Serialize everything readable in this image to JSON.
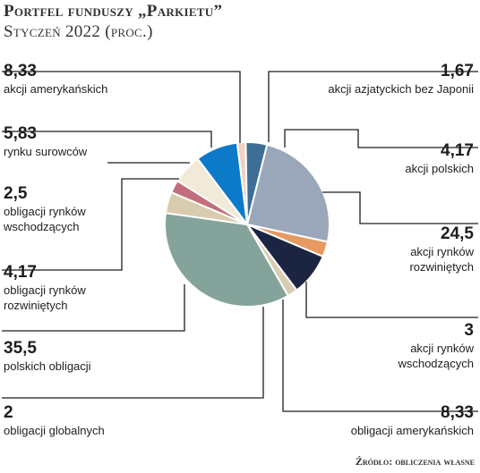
{
  "title": "Portfel funduszy „Parkietu”",
  "subtitle": "Styczeń 2022 (proc.)",
  "source": "Źródło: obliczenia własne",
  "chart_data": {
    "type": "pie",
    "title": "Portfel funduszy „Parkietu”",
    "subtitle": "Styczeń 2022 (proc.)",
    "start_angle_deg": -7,
    "slices": [
      {
        "label": "akcji azjatyckich bez Japonii",
        "value": 1.67,
        "value_text": "1,67",
        "color": "#f0d2c2"
      },
      {
        "label": "akcji polskich",
        "value": 4.17,
        "value_text": "4,17",
        "color": "#3e6e95"
      },
      {
        "label": "akcji rynków rozwiniętych",
        "value": 24.5,
        "value_text": "24,5",
        "color": "#9aa7bb"
      },
      {
        "label": "akcji rynków wschodzących",
        "value": 3,
        "value_text": "3",
        "color": "#e69a62"
      },
      {
        "label": "obligacji amerykańskich",
        "value": 8.33,
        "value_text": "8,33",
        "color": "#1b2542"
      },
      {
        "label": "obligacji globalnych",
        "value": 2,
        "value_text": "2",
        "color": "#d8ccb4"
      },
      {
        "label": "polskich obligacji",
        "value": 35.5,
        "value_text": "35,5",
        "color": "#84a39b"
      },
      {
        "label": "obligacji rynków rozwiniętych",
        "value": 4.17,
        "value_text": "4,17",
        "color": "#d9ccae"
      },
      {
        "label": "obligacji rynków wschodzących",
        "value": 2.5,
        "value_text": "2,5",
        "color": "#c16f7b"
      },
      {
        "label": "rynku surowców",
        "value": 5.83,
        "value_text": "5,83",
        "color": "#f1ead8"
      },
      {
        "label": "akcji amerykańskich",
        "value": 8.33,
        "value_text": "8,33",
        "color": "#0c7ac9"
      }
    ]
  },
  "labels": {
    "akcje_usa": {
      "value": "8,33",
      "text": "akcji amerykańskich"
    },
    "surowce": {
      "value": "5,83",
      "text": "rynku surowców"
    },
    "obl_wschodzace": {
      "value": "2,5",
      "line1": "obligacji rynków",
      "line2": "wschodzących"
    },
    "obl_rozwiniete": {
      "value": "4,17",
      "line1": "obligacji rynków",
      "line2": "rozwiniętych"
    },
    "polskie_obl": {
      "value": "35,5",
      "text": "polskich obligacji"
    },
    "obl_globalne": {
      "value": "2",
      "text": "obligacji globalnych"
    },
    "akcje_azja": {
      "value": "1,67",
      "text": "akcji azjatyckich bez Japonii"
    },
    "akcje_pl": {
      "value": "4,17",
      "text": "akcji polskich"
    },
    "akcje_rozw": {
      "value": "24,5",
      "line1": "akcji rynków",
      "line2": "rozwiniętych"
    },
    "akcje_wsch": {
      "value": "3",
      "line1": "akcji rynków",
      "line2": "wschodzących"
    },
    "obl_usa": {
      "value": "8,33",
      "text": "obligacji amerykańskich"
    }
  }
}
